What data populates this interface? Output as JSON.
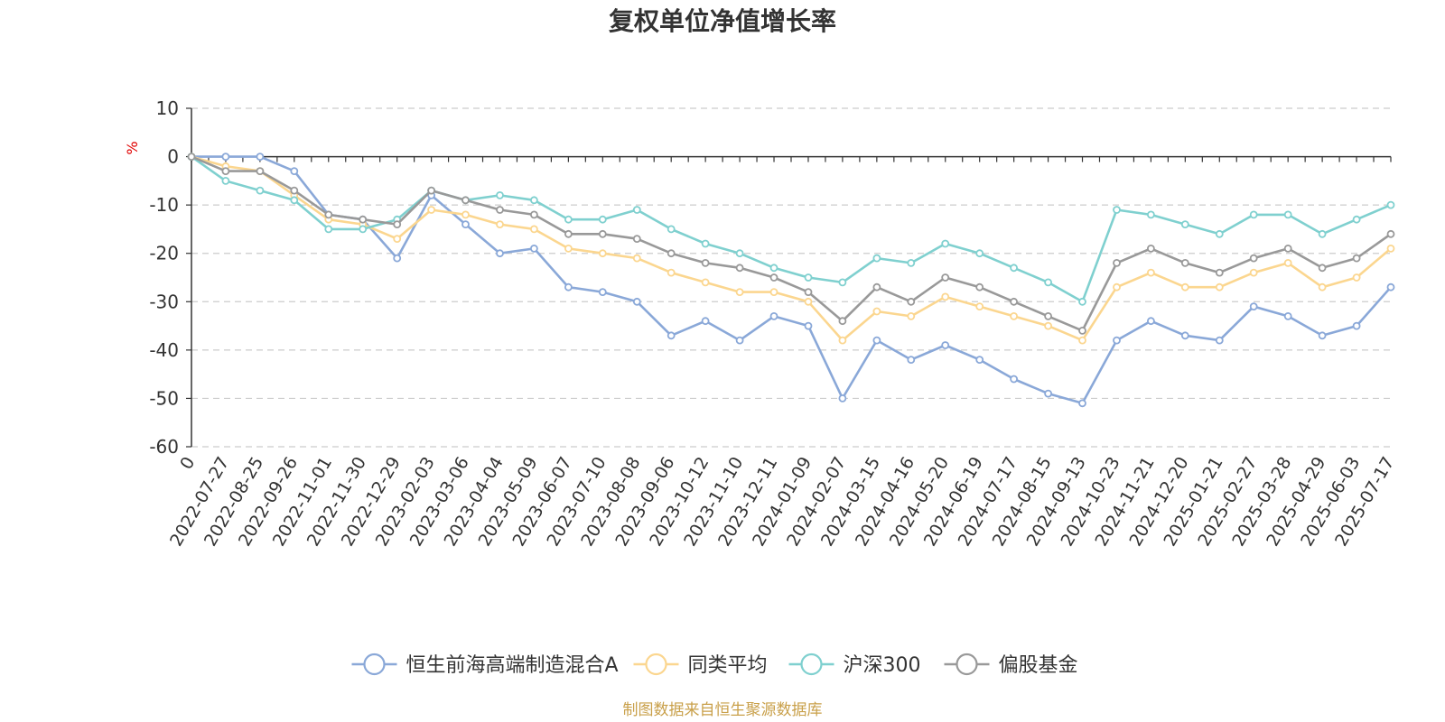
{
  "chart_data": {
    "type": "line",
    "title": "复权单位净值增长率",
    "ylabel": "%",
    "ylim": [
      -60,
      10
    ],
    "y_ticks": [
      10,
      0,
      -10,
      -20,
      -30,
      -40,
      -50,
      -60
    ],
    "grid": true,
    "legend_position": "bottom",
    "x_labels": [
      "0",
      "2022-07-27",
      "2022-08-25",
      "2022-09-26",
      "2022-11-01",
      "2022-11-30",
      "2022-12-29",
      "2023-02-03",
      "2023-03-06",
      "2023-04-04",
      "2023-05-09",
      "2023-06-07",
      "2023-07-10",
      "2023-08-08",
      "2023-09-06",
      "2023-10-12",
      "2023-11-10",
      "2023-12-11",
      "2024-01-09",
      "2024-02-07",
      "2024-03-15",
      "2024-04-16",
      "2024-05-20",
      "2024-06-19",
      "2024-07-17",
      "2024-08-15",
      "2024-09-13",
      "2024-10-23",
      "2024-11-21",
      "2024-12-20",
      "2025-01-21",
      "2025-02-27",
      "2025-03-28",
      "2025-04-29",
      "2025-06-03",
      "2025-07-17"
    ],
    "series": [
      {
        "name": "恒生前海高端制造混合A",
        "color": "#8aa8d8",
        "values": [
          0,
          0,
          0,
          -3,
          -12,
          -13,
          -21,
          -8,
          -14,
          -20,
          -19,
          -27,
          -28,
          -30,
          -37,
          -34,
          -38,
          -33,
          -35,
          -50,
          -38,
          -42,
          -39,
          -42,
          -46,
          -49,
          -51,
          -38,
          -34,
          -37,
          -38,
          -31,
          -33,
          -37,
          -35,
          -27
        ]
      },
      {
        "name": "同类平均",
        "color": "#fbd68f",
        "values": [
          0,
          -2,
          -3,
          -8,
          -13,
          -14,
          -17,
          -11,
          -12,
          -14,
          -15,
          -19,
          -20,
          -21,
          -24,
          -26,
          -28,
          -28,
          -30,
          -38,
          -32,
          -33,
          -29,
          -31,
          -33,
          -35,
          -38,
          -27,
          -24,
          -27,
          -27,
          -24,
          -22,
          -27,
          -25,
          -19
        ]
      },
      {
        "name": "沪深300",
        "color": "#7fd0cf",
        "values": [
          0,
          -5,
          -7,
          -9,
          -15,
          -15,
          -13,
          -7,
          -9,
          -8,
          -9,
          -13,
          -13,
          -11,
          -15,
          -18,
          -20,
          -23,
          -25,
          -26,
          -21,
          -22,
          -18,
          -20,
          -23,
          -26,
          -30,
          -11,
          -12,
          -14,
          -16,
          -12,
          -12,
          -16,
          -13,
          -10
        ]
      },
      {
        "name": "偏股基金",
        "color": "#999999",
        "values": [
          0,
          -3,
          -3,
          -7,
          -12,
          -13,
          -14,
          -7,
          -9,
          -11,
          -12,
          -16,
          -16,
          -17,
          -20,
          -22,
          -23,
          -25,
          -28,
          -34,
          -27,
          -30,
          -25,
          -27,
          -30,
          -33,
          -36,
          -22,
          -19,
          -22,
          -24,
          -21,
          -19,
          -23,
          -21,
          -16
        ]
      }
    ]
  },
  "source": "制图数据来自恒生聚源数据库",
  "colors": {
    "axis": "#333333",
    "grid": "#cccccc",
    "unit": "#e00000",
    "source": "#c9a04a"
  }
}
